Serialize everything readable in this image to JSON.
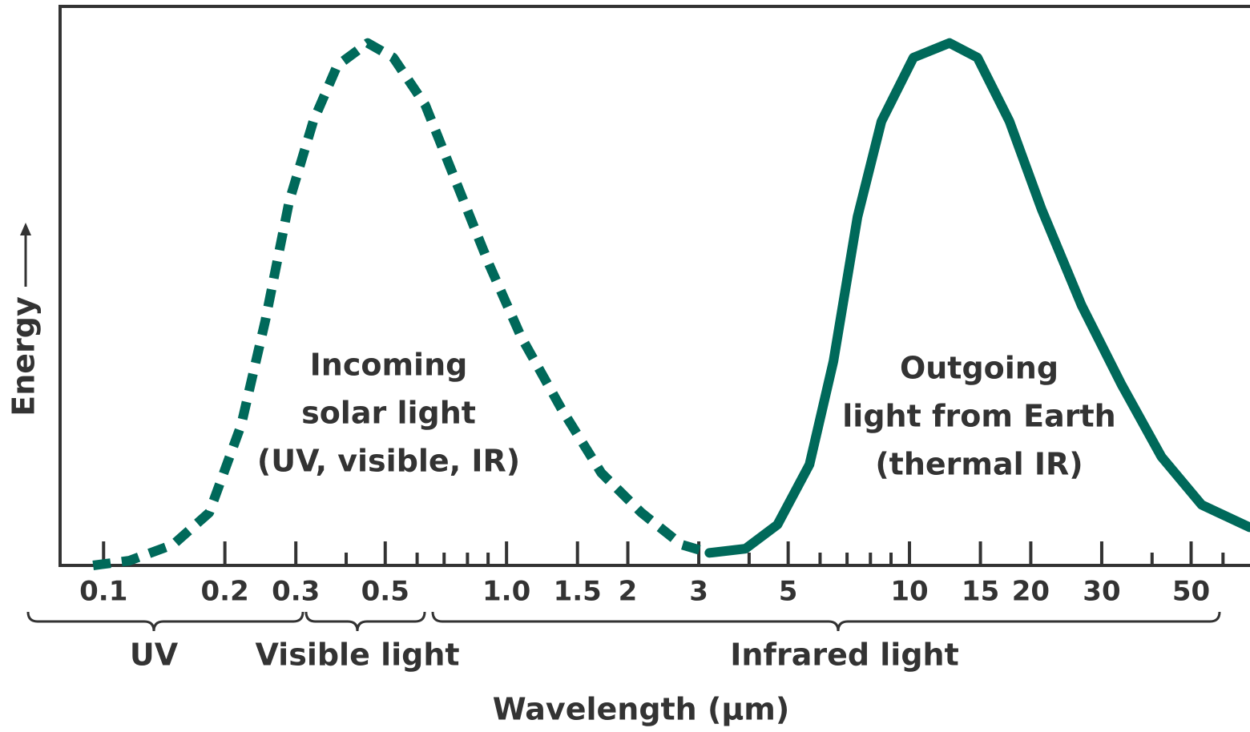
{
  "chart_data": {
    "type": "line",
    "xlabel": "Wavelength (μm)",
    "ylabel": "Energy",
    "xscale": "log",
    "xlim": [
      0.078,
      70
    ],
    "ylim": [
      0,
      1.07
    ],
    "xticks": [
      0.1,
      0.2,
      0.3,
      0.5,
      {
        "value": 1,
        "label": "1.0"
      },
      1.5,
      2,
      3,
      5,
      10,
      15,
      20,
      30,
      50
    ],
    "minor_xticks": [
      0.4,
      0.6,
      0.7,
      0.8,
      0.9,
      4,
      6,
      7,
      8,
      9,
      40,
      60
    ],
    "series": [
      {
        "name": "Incoming solar light (UV, visible, IR)",
        "color": "#00695a",
        "dashed": true,
        "x": [
          0.0942,
          0.1158,
          0.1489,
          0.1829,
          0.2196,
          0.2519,
          0.2889,
          0.3314,
          0.3802,
          0.4523,
          0.5236,
          0.6287,
          0.7549,
          0.9065,
          1.088,
          1.368,
          1.719,
          2.161,
          2.716,
          3.188
        ],
        "values": [
          0,
          0.009,
          0.04,
          0.101,
          0.269,
          0.468,
          0.697,
          0.85,
          0.957,
          1.0,
          0.972,
          0.881,
          0.728,
          0.575,
          0.437,
          0.3,
          0.177,
          0.101,
          0.04,
          0.024
        ]
      },
      {
        "name": "Outgoing light from Earth (thermal IR)",
        "color": "#00695a",
        "dashed": false,
        "x": [
          3.188,
          3.917,
          4.703,
          5.647,
          6.477,
          7.43,
          8.52,
          10.23,
          12.57,
          14.75,
          17.71,
          21.27,
          26.73,
          33.6,
          42.2,
          53.1,
          69.8
        ],
        "values": [
          0.024,
          0.032,
          0.078,
          0.193,
          0.391,
          0.667,
          0.85,
          0.972,
          1.0,
          0.972,
          0.85,
          0.682,
          0.498,
          0.346,
          0.208,
          0.116,
          0.073
        ]
      }
    ],
    "annotations": [
      [
        "Incoming",
        "solar light",
        "(UV, visible, IR)"
      ],
      [
        "Outgoing",
        "light from Earth",
        "(thermal IR)"
      ]
    ],
    "bands": [
      "UV",
      "Visible light",
      "Infrared light"
    ]
  }
}
